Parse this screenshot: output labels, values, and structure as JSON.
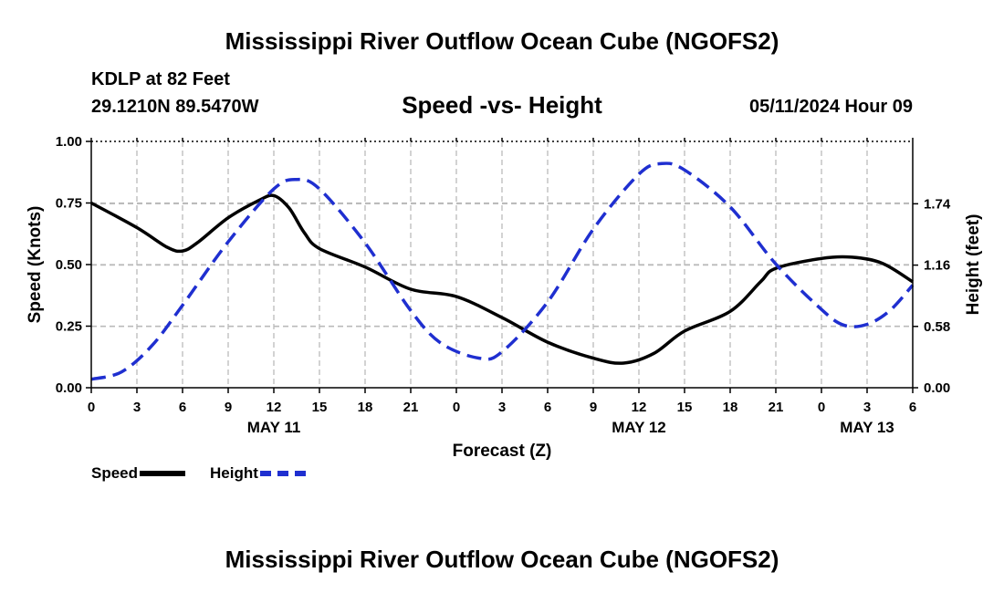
{
  "page_title": "Mississippi River Outflow Ocean Cube (NGOFS2)",
  "station": {
    "name": "KDLP at 82 Feet",
    "coords": "29.1210N  89.5470W"
  },
  "datetime": "05/11/2024 Hour 09",
  "legend": {
    "speed": "Speed",
    "height": "Height"
  },
  "colors": {
    "speed": "#000000",
    "height": "#1f2fd0",
    "grid": "#bbbbbb"
  },
  "chart_data": {
    "type": "line",
    "title": "Speed -vs- Height",
    "xlabel": "Forecast (Z)",
    "ylabel": "Speed (Knots)",
    "y2label": "Height (feet)",
    "x_range_hours": [
      0,
      54
    ],
    "ylim": [
      0,
      1
    ],
    "y2lim": [
      0,
      2.33
    ],
    "x_ticks": [
      {
        "hour": 0,
        "label": "0"
      },
      {
        "hour": 3,
        "label": "3"
      },
      {
        "hour": 6,
        "label": "6"
      },
      {
        "hour": 9,
        "label": "9"
      },
      {
        "hour": 12,
        "label": "12"
      },
      {
        "hour": 15,
        "label": "15"
      },
      {
        "hour": 18,
        "label": "18"
      },
      {
        "hour": 21,
        "label": "21"
      },
      {
        "hour": 24,
        "label": "0"
      },
      {
        "hour": 27,
        "label": "3"
      },
      {
        "hour": 30,
        "label": "6"
      },
      {
        "hour": 33,
        "label": "9"
      },
      {
        "hour": 36,
        "label": "12"
      },
      {
        "hour": 39,
        "label": "15"
      },
      {
        "hour": 42,
        "label": "18"
      },
      {
        "hour": 45,
        "label": "21"
      },
      {
        "hour": 48,
        "label": "0"
      },
      {
        "hour": 51,
        "label": "3"
      },
      {
        "hour": 54,
        "label": "6"
      }
    ],
    "date_labels": [
      {
        "hour": 12,
        "label": "MAY 11"
      },
      {
        "hour": 36,
        "label": "MAY 12"
      },
      {
        "hour": 51,
        "label": "MAY 13"
      }
    ],
    "y_ticks": [
      {
        "value": 0.0,
        "label": "0.00"
      },
      {
        "value": 0.25,
        "label": "0.25"
      },
      {
        "value": 0.5,
        "label": "0.50"
      },
      {
        "value": 0.75,
        "label": "0.75"
      },
      {
        "value": 1.0,
        "label": "1.00"
      }
    ],
    "y2_ticks": [
      {
        "value": 0.0,
        "label": "0.00"
      },
      {
        "value": 0.58,
        "label": "0.58"
      },
      {
        "value": 1.16,
        "label": "1.16"
      },
      {
        "value": 1.74,
        "label": "1.74"
      }
    ],
    "series": [
      {
        "name": "Speed",
        "axis": "left",
        "style": "solid",
        "points": [
          [
            0,
            0.75
          ],
          [
            3,
            0.65
          ],
          [
            5,
            0.57
          ],
          [
            6,
            0.555
          ],
          [
            7,
            0.59
          ],
          [
            9,
            0.69
          ],
          [
            11,
            0.76
          ],
          [
            12,
            0.78
          ],
          [
            13,
            0.73
          ],
          [
            14,
            0.63
          ],
          [
            15,
            0.565
          ],
          [
            18,
            0.49
          ],
          [
            21,
            0.4
          ],
          [
            24,
            0.37
          ],
          [
            27,
            0.285
          ],
          [
            30,
            0.185
          ],
          [
            33,
            0.12
          ],
          [
            35,
            0.1
          ],
          [
            37,
            0.14
          ],
          [
            39,
            0.23
          ],
          [
            42,
            0.31
          ],
          [
            44,
            0.43
          ],
          [
            45,
            0.485
          ],
          [
            48,
            0.525
          ],
          [
            50,
            0.53
          ],
          [
            52,
            0.505
          ],
          [
            54,
            0.43
          ]
        ]
      },
      {
        "name": "Height",
        "axis": "right",
        "style": "dashed",
        "points": [
          [
            0,
            0.08
          ],
          [
            2,
            0.15
          ],
          [
            4,
            0.4
          ],
          [
            6,
            0.78
          ],
          [
            9,
            1.38
          ],
          [
            12,
            1.88
          ],
          [
            13.5,
            1.97
          ],
          [
            15,
            1.88
          ],
          [
            18,
            1.37
          ],
          [
            21,
            0.73
          ],
          [
            23,
            0.42
          ],
          [
            25.5,
            0.28
          ],
          [
            27,
            0.34
          ],
          [
            30,
            0.81
          ],
          [
            33,
            1.5
          ],
          [
            36,
            2.02
          ],
          [
            37.5,
            2.12
          ],
          [
            39,
            2.06
          ],
          [
            42,
            1.71
          ],
          [
            45,
            1.17
          ],
          [
            48,
            0.74
          ],
          [
            49.5,
            0.59
          ],
          [
            51,
            0.6
          ],
          [
            52.5,
            0.73
          ],
          [
            54,
            0.97
          ]
        ]
      }
    ]
  }
}
